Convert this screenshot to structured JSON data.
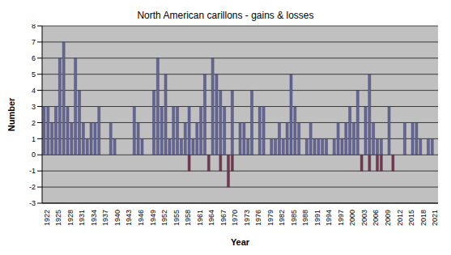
{
  "chart_data": {
    "type": "bar",
    "title": "North American carillons - gains & losses",
    "x_label": "Year",
    "y_label": "Number",
    "categories": [
      "1922",
      null,
      null,
      "1925",
      null,
      null,
      "1928",
      null,
      null,
      "1931",
      null,
      null,
      "1934",
      null,
      null,
      "1937",
      null,
      null,
      "1940",
      null,
      null,
      "1943",
      null,
      null,
      "1946",
      null,
      null,
      "1949",
      null,
      null,
      "1952",
      null,
      null,
      "1955",
      null,
      null,
      "1958",
      null,
      null,
      "1961",
      null,
      null,
      "1964",
      null,
      null,
      "1967",
      null,
      null,
      "1970",
      null,
      null,
      "1973",
      null,
      null,
      "1976",
      null,
      null,
      "1979",
      null,
      null,
      "1982",
      null,
      null,
      "1985",
      null,
      null,
      "1988",
      null,
      null,
      "1991",
      null,
      null,
      "1994",
      null,
      null,
      "1997",
      null,
      null,
      "2000",
      null,
      null,
      "2003",
      null,
      null,
      "2006",
      null,
      null,
      "2009",
      null,
      null,
      "2012",
      null,
      null,
      "2015",
      null,
      null,
      "2018",
      null,
      null,
      "2021",
      null
    ],
    "series": [
      {
        "color": "#666699",
        "values": [
          3,
          3,
          2,
          3,
          6,
          7,
          3,
          2,
          6,
          4,
          2,
          1,
          2,
          2,
          3,
          0,
          0,
          2,
          1,
          0,
          0,
          0,
          0,
          3,
          2,
          1,
          0,
          0,
          4,
          6,
          3,
          5,
          1,
          3,
          3,
          1,
          2,
          3,
          1,
          2,
          3,
          5,
          0,
          6,
          5,
          4,
          3,
          0,
          4,
          0,
          2,
          2,
          1,
          4,
          0,
          3,
          3,
          0,
          1,
          1,
          2,
          1,
          2,
          5,
          3,
          2,
          0,
          1,
          2,
          1,
          1,
          1,
          1,
          0,
          1,
          2,
          1,
          2,
          3,
          2,
          4,
          0,
          3,
          5,
          2,
          1,
          1,
          0,
          3,
          0,
          0,
          0,
          2,
          0,
          2,
          2,
          1,
          0,
          1,
          1,
          0
        ]
      },
      {
        "color": "#7a3548",
        "values": [
          0,
          0,
          0,
          0,
          0,
          0,
          0,
          0,
          0,
          0,
          0,
          0,
          0,
          0,
          0,
          0,
          0,
          0,
          0,
          0,
          0,
          0,
          0,
          0,
          0,
          0,
          0,
          0,
          0,
          0,
          0,
          0,
          0,
          0,
          0,
          0,
          0,
          -1,
          0,
          0,
          0,
          0,
          -1,
          0,
          0,
          -1,
          0,
          -2,
          -1,
          0,
          0,
          0,
          0,
          0,
          0,
          0,
          0,
          0,
          0,
          0,
          0,
          0,
          0,
          0,
          0,
          0,
          0,
          0,
          0,
          0,
          0,
          0,
          0,
          0,
          0,
          0,
          0,
          0,
          0,
          0,
          0,
          -1,
          0,
          -1,
          0,
          -1,
          -1,
          0,
          0,
          -1,
          0,
          0,
          0,
          0,
          0,
          0,
          0,
          0,
          0,
          0,
          0
        ]
      }
    ],
    "ylim": [
      -3,
      8
    ],
    "yticks": [
      -3,
      -2,
      -1,
      0,
      1,
      2,
      3,
      4,
      5,
      6,
      7,
      8
    ],
    "stacked": true,
    "grid": true
  }
}
